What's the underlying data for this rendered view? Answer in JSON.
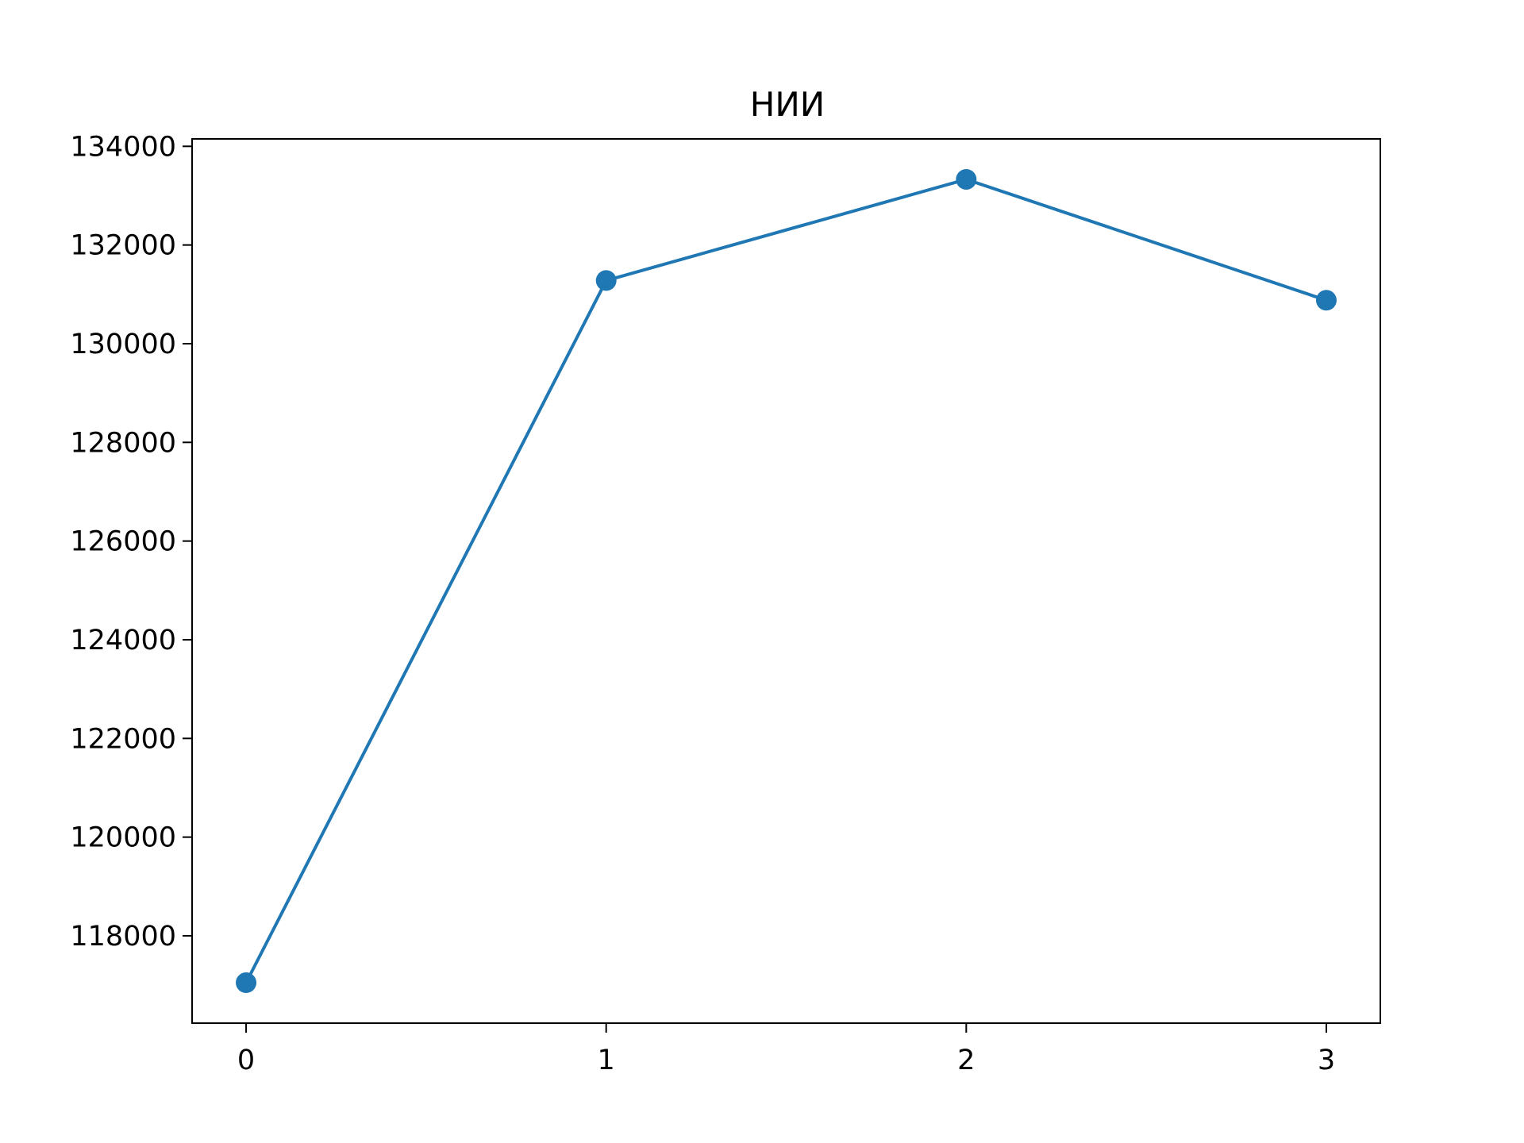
{
  "chart_data": {
    "type": "line",
    "title": "НИИ",
    "xlabel": "",
    "ylabel": "",
    "x": [
      0,
      1,
      2,
      3
    ],
    "series": [
      {
        "values": [
          117050,
          131280,
          133330,
          130880
        ],
        "color": "#1f77b4",
        "marker": "circle"
      }
    ],
    "xticks": [
      0,
      1,
      2,
      3
    ],
    "xtick_labels": [
      "0",
      "1",
      "2",
      "3"
    ],
    "yticks": [
      118000,
      120000,
      122000,
      124000,
      126000,
      128000,
      130000,
      132000,
      134000
    ],
    "ytick_labels": [
      "118000",
      "120000",
      "122000",
      "124000",
      "126000",
      "128000",
      "130000",
      "132000",
      "134000"
    ],
    "xlim": [
      -0.15,
      3.15
    ],
    "ylim": [
      116230,
      134150
    ],
    "grid": false,
    "legend": "none"
  }
}
